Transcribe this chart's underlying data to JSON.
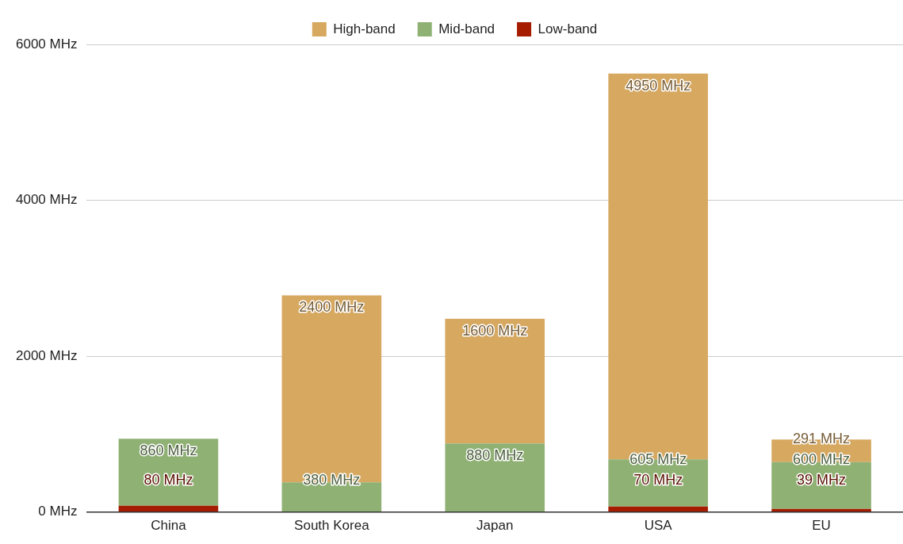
{
  "chart_data": {
    "type": "bar",
    "stacked": true,
    "categories": [
      "China",
      "South Korea",
      "Japan",
      "USA",
      "EU"
    ],
    "series": [
      {
        "name": "Low-band",
        "color": "#a61c00",
        "values": [
          80,
          null,
          null,
          70,
          39
        ],
        "value_labels": [
          "80 MHz",
          null,
          null,
          "70 MHz",
          "39 MHz"
        ]
      },
      {
        "name": "Mid-band",
        "color": "#8fb174",
        "values": [
          860,
          380,
          880,
          605,
          600
        ],
        "value_labels": [
          "860 MHz",
          "380 MHz",
          "880 MHz",
          "605 MHz",
          "600 MHz"
        ]
      },
      {
        "name": "High-band",
        "color": "#d6a860",
        "values": [
          null,
          2400,
          1600,
          4950,
          291
        ],
        "value_labels": [
          null,
          "2400 MHz",
          "1600 MHz",
          "4950 MHz",
          "291 MHz"
        ]
      }
    ],
    "ylim": [
      0,
      6000
    ],
    "yticks": [
      {
        "value": 0,
        "label": "0 MHz"
      },
      {
        "value": 2000,
        "label": "2000 MHz"
      },
      {
        "value": 4000,
        "label": "4000 MHz"
      },
      {
        "value": 6000,
        "label": "6000 MHz"
      }
    ],
    "grid": "y",
    "legend": "top"
  }
}
